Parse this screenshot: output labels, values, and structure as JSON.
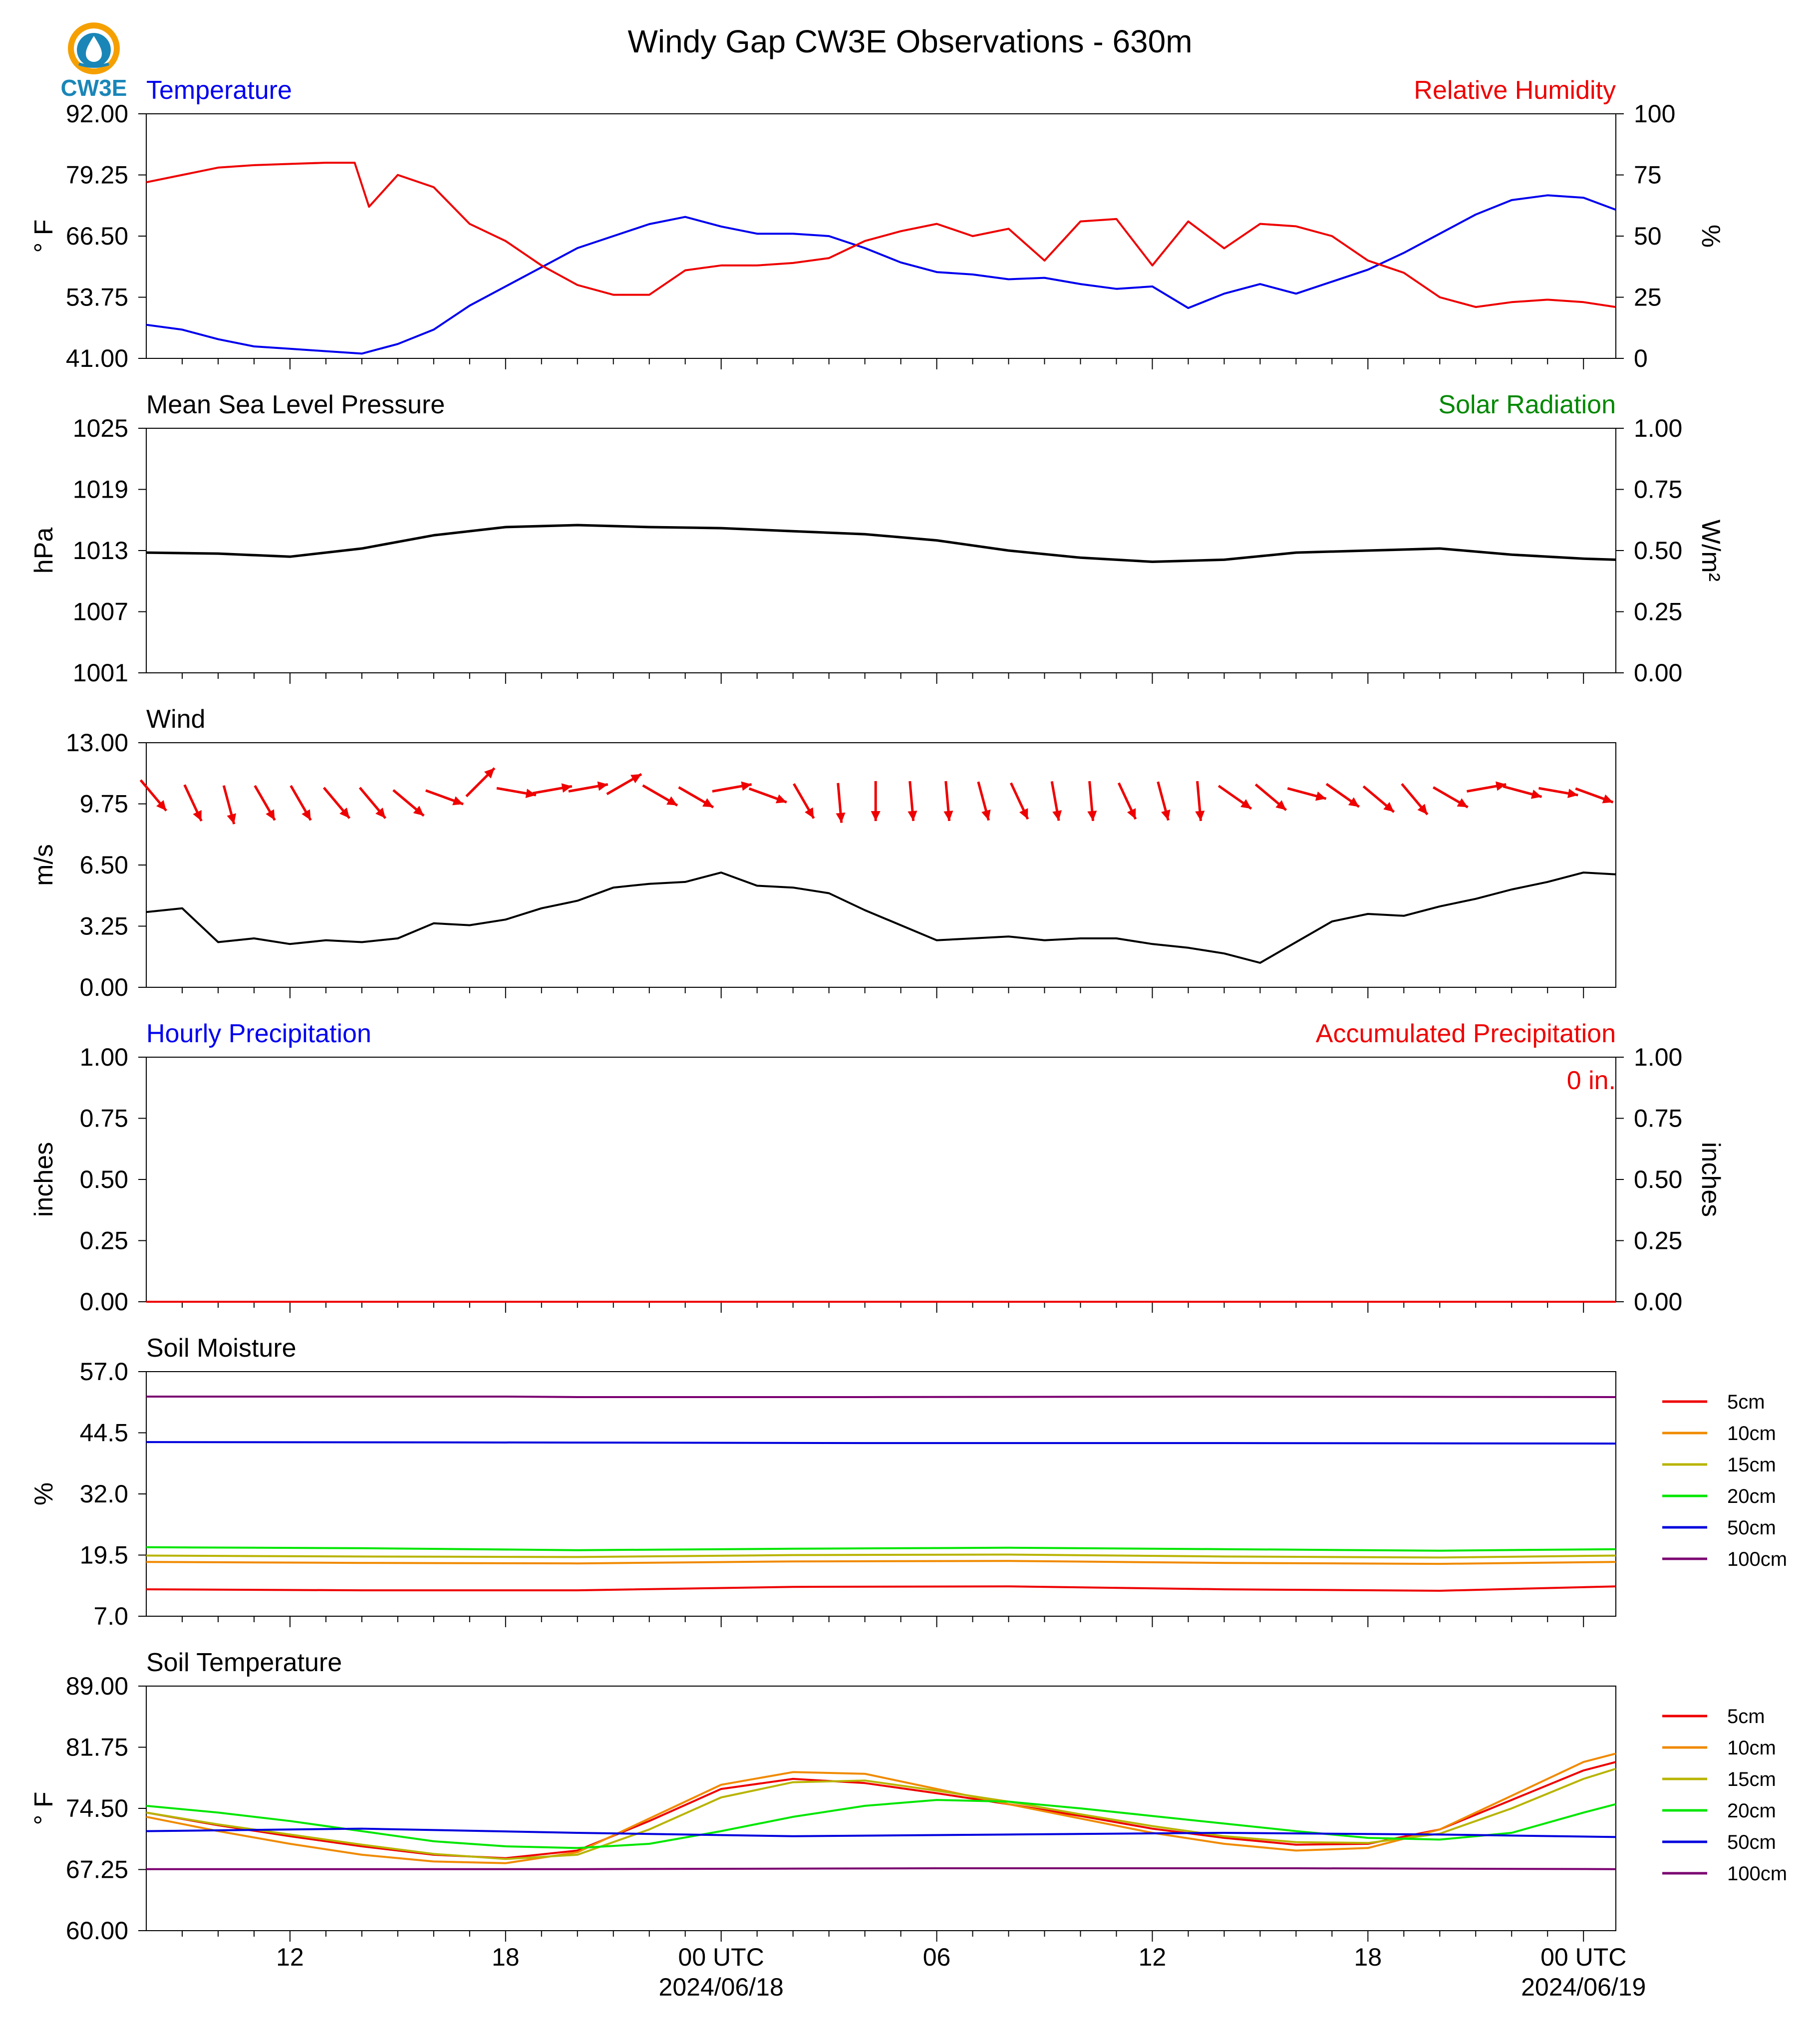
{
  "title": "Windy Gap CW3E Observations - 630m",
  "logo": {
    "label": "CW3E",
    "icon": "water-drop-sun-icon"
  },
  "colors": {
    "blue": "#0000ee",
    "red": "#ee0000",
    "green": "#008800",
    "black": "#000000"
  },
  "x_axis": {
    "tick_labels": [
      "12",
      "18",
      "00 UTC",
      "06",
      "12",
      "18",
      "00 UTC"
    ],
    "date_labels": [
      "2024/06/18",
      "2024/06/19"
    ]
  },
  "precip_total": "0 in.",
  "legend": {
    "labels": [
      "5cm",
      "10cm",
      "15cm",
      "20cm",
      "50cm",
      "100cm"
    ],
    "colors": [
      "#ee0000",
      "#f08a00",
      "#b8b400",
      "#00e600",
      "#0000dd",
      "#7a0070"
    ]
  },
  "chart_data": [
    {
      "type": "line",
      "title_left": "Temperature",
      "title_right": "Relative Humidity",
      "ylabel_left": "° F",
      "ylabel_right": "%",
      "ylim_left": [
        41.0,
        92.0
      ],
      "yticks_left": [
        "92.00",
        "79.25",
        "66.50",
        "53.75",
        "41.00"
      ],
      "ylim_right": [
        0,
        100
      ],
      "yticks_right": [
        "100",
        "75",
        "50",
        "25",
        "0"
      ],
      "series": [
        {
          "color": "#0000ee",
          "axis": "left",
          "x": [
            8,
            9,
            10,
            11,
            12,
            13,
            14,
            15,
            16,
            17,
            18,
            19,
            20,
            21,
            22,
            23,
            24,
            25,
            26,
            27,
            28,
            29,
            30,
            31,
            32,
            33,
            34,
            35,
            36,
            37,
            38,
            39,
            40,
            41,
            42,
            43,
            44,
            45,
            46,
            47,
            48,
            48.9
          ],
          "y": [
            48,
            47,
            45,
            43.5,
            43,
            42.5,
            42,
            44,
            47,
            52,
            56,
            60,
            64,
            66.5,
            69,
            70.5,
            68.5,
            67,
            67,
            66.5,
            64,
            61,
            59,
            58.5,
            57.5,
            57.8,
            56.5,
            55.5,
            56,
            51.5,
            54.5,
            56.5,
            54.5,
            57,
            59.5,
            63,
            67,
            71,
            74,
            75,
            74.5,
            72
          ]
        },
        {
          "color": "#ee0000",
          "axis": "right",
          "x": [
            8,
            9,
            10,
            11,
            12,
            13,
            13.8,
            14.2,
            15,
            16,
            17,
            18,
            19,
            20,
            21,
            22,
            23,
            24,
            25,
            26,
            27,
            28,
            29,
            30,
            31,
            32,
            33,
            34,
            35,
            36,
            37,
            38,
            39,
            40,
            41,
            42,
            43,
            44,
            45,
            46,
            47,
            48,
            48.9
          ],
          "y": [
            72,
            75,
            78,
            79,
            79.5,
            80,
            80,
            62,
            75,
            70,
            55,
            48,
            38,
            30,
            26,
            26,
            36,
            38,
            38,
            39,
            41,
            48,
            52,
            55,
            50,
            53,
            40,
            56,
            57,
            38,
            56,
            45,
            55,
            54,
            50,
            40,
            35,
            25,
            21,
            23,
            24,
            23,
            21
          ]
        }
      ]
    },
    {
      "type": "line",
      "title_left": "Mean Sea Level Pressure",
      "title_right": "Solar Radiation",
      "ylabel_left": "hPa",
      "ylabel_right": "W/m²",
      "ylim_left": [
        1001,
        1025
      ],
      "yticks_left": [
        "1025",
        "1019",
        "1013",
        "1007",
        "1001"
      ],
      "ylim_right": [
        0,
        1
      ],
      "yticks_right": [
        "1.00",
        "0.75",
        "0.50",
        "0.25",
        "0.00"
      ],
      "series": [
        {
          "color": "#000000",
          "axis": "left",
          "x": [
            8,
            10,
            12,
            14,
            16,
            18,
            20,
            22,
            24,
            26,
            28,
            30,
            32,
            34,
            36,
            38,
            40,
            42,
            44,
            46,
            48,
            48.9
          ],
          "y": [
            1012.8,
            1012.7,
            1012.4,
            1013.2,
            1014.5,
            1015.3,
            1015.5,
            1015.3,
            1015.2,
            1014.9,
            1014.6,
            1014.0,
            1013.0,
            1012.3,
            1011.9,
            1012.1,
            1012.8,
            1013.0,
            1013.2,
            1012.6,
            1012.2,
            1012.1
          ]
        }
      ]
    },
    {
      "type": "line",
      "title_left": "Wind",
      "ylabel_left": "m/s",
      "ylim_left": [
        0,
        13
      ],
      "yticks_left": [
        "13.00",
        "9.75",
        "6.50",
        "3.25",
        "0.00"
      ],
      "series": [
        {
          "color": "#000000",
          "axis": "left",
          "x": [
            8,
            9,
            10,
            11,
            12,
            13,
            14,
            15,
            16,
            17,
            18,
            19,
            20,
            21,
            22,
            23,
            24,
            25,
            26,
            27,
            28,
            29,
            30,
            31,
            32,
            33,
            34,
            35,
            36,
            37,
            38,
            39,
            40,
            41,
            42,
            43,
            44,
            45,
            46,
            47,
            48,
            48.9
          ],
          "y": [
            4.0,
            4.2,
            2.4,
            2.6,
            2.3,
            2.5,
            2.4,
            2.6,
            3.4,
            3.3,
            3.6,
            4.2,
            4.6,
            5.3,
            5.5,
            5.6,
            6.1,
            5.4,
            5.3,
            5.0,
            4.1,
            3.3,
            2.5,
            2.6,
            2.7,
            2.5,
            2.6,
            2.6,
            2.3,
            2.1,
            1.8,
            1.3,
            2.4,
            3.5,
            3.9,
            3.8,
            4.3,
            4.7,
            5.2,
            5.6,
            6.1,
            6.0
          ]
        }
      ],
      "wind_arrows": {
        "color": "#ee0000",
        "x": [
          8.2,
          9.3,
          10.3,
          11.3,
          12.3,
          13.3,
          14.3,
          15.3,
          16.3,
          17.3,
          18.3,
          19.3,
          20.3,
          21.3,
          22.3,
          23.3,
          24.3,
          25.3,
          26.3,
          27.3,
          28.3,
          29.3,
          30.3,
          31.3,
          32.3,
          33.3,
          34.3,
          35.3,
          36.3,
          37.3,
          38.3,
          39.3,
          40.3,
          41.3,
          42.3,
          43.3,
          44.3,
          45.3,
          46.3,
          47.3,
          48.3
        ],
        "direction_deg": [
          320,
          335,
          345,
          330,
          330,
          320,
          320,
          310,
          290,
          225,
          280,
          260,
          260,
          240,
          300,
          300,
          260,
          290,
          330,
          355,
          360,
          355,
          355,
          345,
          335,
          350,
          355,
          335,
          345,
          355,
          305,
          310,
          285,
          305,
          310,
          320,
          300,
          260,
          285,
          280,
          290
        ],
        "y": [
          10.2,
          9.8,
          9.7,
          9.8,
          9.8,
          9.8,
          9.8,
          9.8,
          10.1,
          10.9,
          10.4,
          10.5,
          10.6,
          10.8,
          10.2,
          10.1,
          10.6,
          10.2,
          9.9,
          9.8,
          9.9,
          9.9,
          9.9,
          9.9,
          9.9,
          9.9,
          9.9,
          9.9,
          9.9,
          9.9,
          10.1,
          10.1,
          10.3,
          10.2,
          10.0,
          10.0,
          10.1,
          10.6,
          10.4,
          10.4,
          10.2
        ]
      }
    },
    {
      "type": "line",
      "title_left": "Hourly Precipitation",
      "title_right": "Accumulated Precipitation",
      "ylabel_left": "inches",
      "ylabel_right": "inches",
      "ylim_left": [
        0,
        1
      ],
      "yticks_left": [
        "1.00",
        "0.75",
        "0.50",
        "0.25",
        "0.00"
      ],
      "ylim_right": [
        0,
        1
      ],
      "yticks_right": [
        "1.00",
        "0.75",
        "0.50",
        "0.25",
        "0.00"
      ],
      "series": [
        {
          "color": "#ee0000",
          "axis": "left",
          "x": [
            8,
            48.9
          ],
          "y": [
            0,
            0
          ]
        }
      ]
    },
    {
      "type": "line",
      "title_left": "Soil Moisture",
      "ylabel_left": "%",
      "ylim_left": [
        7.0,
        57.0
      ],
      "yticks_left": [
        "57.0",
        "44.5",
        "32.0",
        "19.5",
        "7.0"
      ],
      "series": [
        {
          "name": "5cm",
          "color": "#ee0000",
          "axis": "left",
          "x": [
            8,
            14,
            20,
            26,
            32,
            38,
            44,
            48.9
          ],
          "y": [
            12.5,
            12.3,
            12.3,
            13.0,
            13.1,
            12.5,
            12.2,
            13.1
          ]
        },
        {
          "name": "10cm",
          "color": "#f08a00",
          "axis": "left",
          "x": [
            8,
            14,
            20,
            26,
            32,
            38,
            44,
            48.9
          ],
          "y": [
            18.1,
            17.9,
            17.8,
            18.2,
            18.3,
            17.9,
            17.7,
            18.1
          ]
        },
        {
          "name": "15cm",
          "color": "#b8b400",
          "axis": "left",
          "x": [
            8,
            14,
            20,
            26,
            32,
            38,
            44,
            48.9
          ],
          "y": [
            19.4,
            19.2,
            19.1,
            19.5,
            19.6,
            19.2,
            19.0,
            19.4
          ]
        },
        {
          "name": "20cm",
          "color": "#00e600",
          "axis": "left",
          "x": [
            8,
            14,
            20,
            26,
            32,
            38,
            44,
            48.9
          ],
          "y": [
            21.1,
            20.9,
            20.5,
            20.8,
            21.0,
            20.7,
            20.4,
            20.7
          ]
        },
        {
          "name": "50cm",
          "color": "#0000dd",
          "axis": "left",
          "x": [
            8,
            20,
            28,
            38,
            48.9
          ],
          "y": [
            42.6,
            42.5,
            42.4,
            42.4,
            42.3
          ]
        },
        {
          "name": "100cm",
          "color": "#7a0070",
          "axis": "left",
          "x": [
            8,
            18,
            20,
            28,
            38,
            48.9
          ],
          "y": [
            51.9,
            51.9,
            51.8,
            51.8,
            51.9,
            51.8
          ]
        }
      ]
    },
    {
      "type": "line",
      "title_left": "Soil Temperature",
      "ylabel_left": "° F",
      "ylim_left": [
        60.0,
        89.0
      ],
      "yticks_left": [
        "89.00",
        "81.75",
        "74.50",
        "67.25",
        "60.00"
      ],
      "series": [
        {
          "name": "5cm",
          "color": "#ee0000",
          "axis": "left",
          "x": [
            8,
            10,
            12,
            14,
            16,
            18,
            20,
            22,
            24,
            26,
            28,
            30,
            32,
            34,
            36,
            38,
            40,
            42,
            44,
            46,
            48,
            48.9
          ],
          "y": [
            74.0,
            72.5,
            71.2,
            70.0,
            69.0,
            68.6,
            69.5,
            73.0,
            76.8,
            78.0,
            77.5,
            76.3,
            75.0,
            73.6,
            72.1,
            71.0,
            70.2,
            70.3,
            72.0,
            75.5,
            79.0,
            80.0
          ]
        },
        {
          "name": "10cm",
          "color": "#f08a00",
          "axis": "left",
          "x": [
            8,
            10,
            12,
            14,
            16,
            18,
            20,
            22,
            24,
            26,
            28,
            30,
            32,
            34,
            36,
            38,
            40,
            42,
            44,
            46,
            48,
            48.9
          ],
          "y": [
            73.5,
            71.8,
            70.3,
            69.0,
            68.2,
            68.0,
            69.3,
            73.3,
            77.3,
            78.8,
            78.6,
            76.8,
            75.0,
            73.3,
            71.6,
            70.3,
            69.5,
            69.8,
            72.0,
            76.0,
            80.0,
            81.0
          ]
        },
        {
          "name": "15cm",
          "color": "#b8b400",
          "axis": "left",
          "x": [
            8,
            10,
            12,
            14,
            16,
            18,
            20,
            22,
            24,
            26,
            28,
            30,
            32,
            34,
            36,
            38,
            40,
            42,
            44,
            46,
            48,
            48.9
          ],
          "y": [
            74.0,
            72.6,
            71.4,
            70.2,
            69.1,
            68.5,
            69.0,
            72.0,
            75.8,
            77.6,
            77.8,
            76.6,
            75.3,
            73.8,
            72.4,
            71.2,
            70.5,
            70.4,
            71.5,
            74.5,
            78.0,
            79.2
          ]
        },
        {
          "name": "20cm",
          "color": "#00e600",
          "axis": "left",
          "x": [
            8,
            10,
            12,
            14,
            16,
            18,
            20,
            22,
            24,
            26,
            28,
            30,
            32,
            34,
            36,
            38,
            40,
            42,
            44,
            46,
            48,
            48.9
          ],
          "y": [
            74.8,
            74.0,
            73.0,
            71.8,
            70.6,
            70.0,
            69.8,
            70.3,
            71.8,
            73.5,
            74.8,
            75.5,
            75.3,
            74.5,
            73.6,
            72.7,
            71.8,
            71.0,
            70.8,
            71.6,
            74.0,
            75.0
          ]
        },
        {
          "name": "50cm",
          "color": "#0000dd",
          "axis": "left",
          "x": [
            8,
            14,
            20,
            26,
            32,
            38,
            44,
            48.9
          ],
          "y": [
            71.8,
            72.1,
            71.6,
            71.2,
            71.4,
            71.6,
            71.4,
            71.1
          ]
        },
        {
          "name": "100cm",
          "color": "#7a0070",
          "axis": "left",
          "x": [
            8,
            20,
            30,
            40,
            48.9
          ],
          "y": [
            67.3,
            67.3,
            67.4,
            67.4,
            67.3
          ]
        }
      ]
    }
  ]
}
